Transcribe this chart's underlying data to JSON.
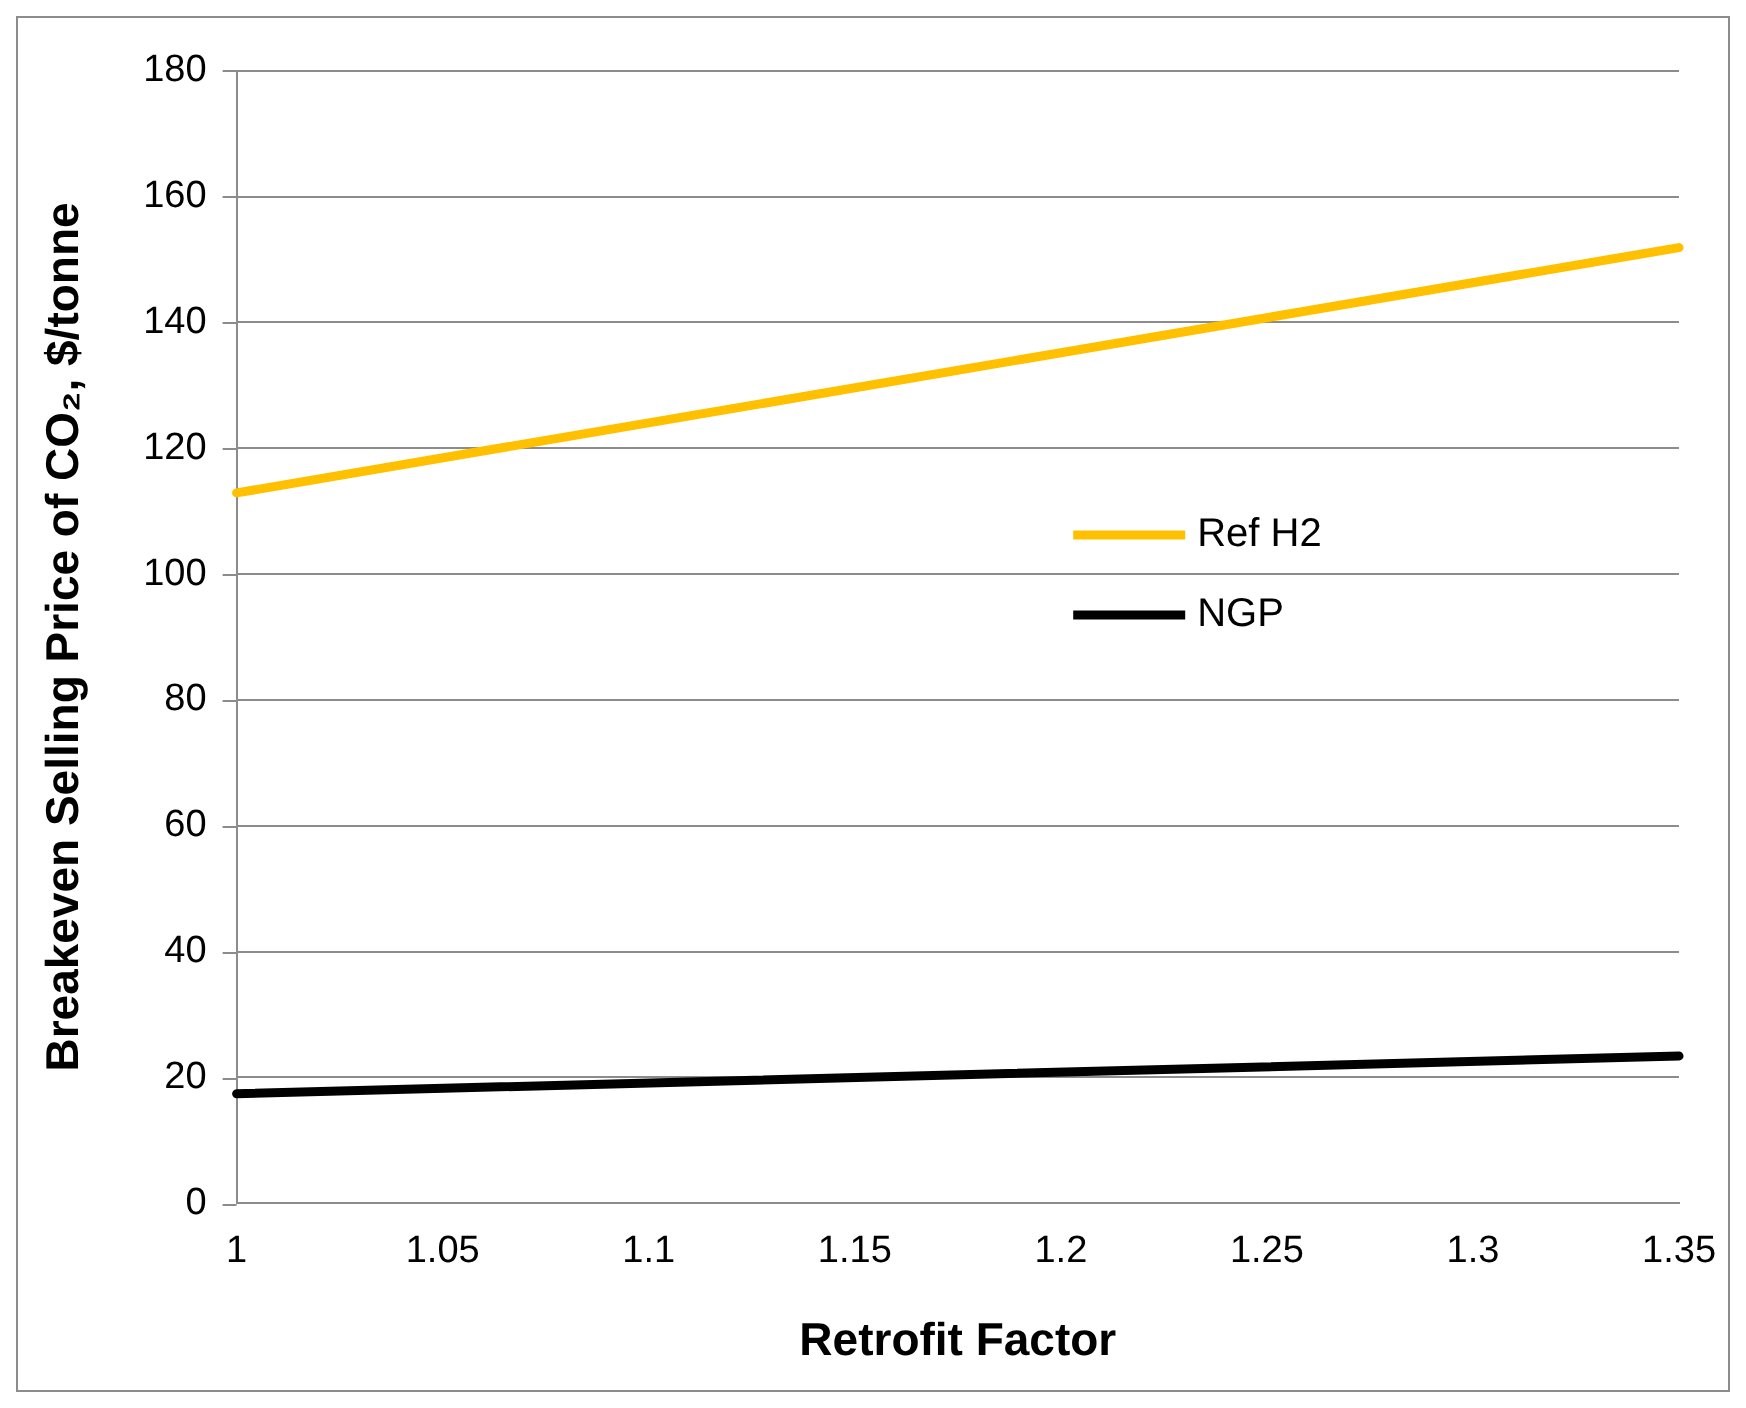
{
  "chart_data": {
    "type": "line",
    "xlabel": "Retrofit Factor",
    "ylabel": "Breakeven Selling Price of CO₂, $/tonne",
    "x": [
      1,
      1.35
    ],
    "series": [
      {
        "name": "Ref H2",
        "color": "#ffc000",
        "values": [
          112.9,
          151.9
        ]
      },
      {
        "name": "NGP",
        "color": "#000000",
        "values": [
          17.4,
          23.4
        ]
      }
    ],
    "xlim": [
      1,
      1.35
    ],
    "xticks": [
      1,
      1.05,
      1.1,
      1.15,
      1.2,
      1.25,
      1.3,
      1.35
    ],
    "ylim": [
      0,
      180
    ],
    "yticks": [
      0,
      20,
      40,
      60,
      80,
      100,
      120,
      140,
      160,
      180
    ],
    "grid": "y",
    "legend": "right",
    "marker": "none",
    "line_style": "solid"
  }
}
